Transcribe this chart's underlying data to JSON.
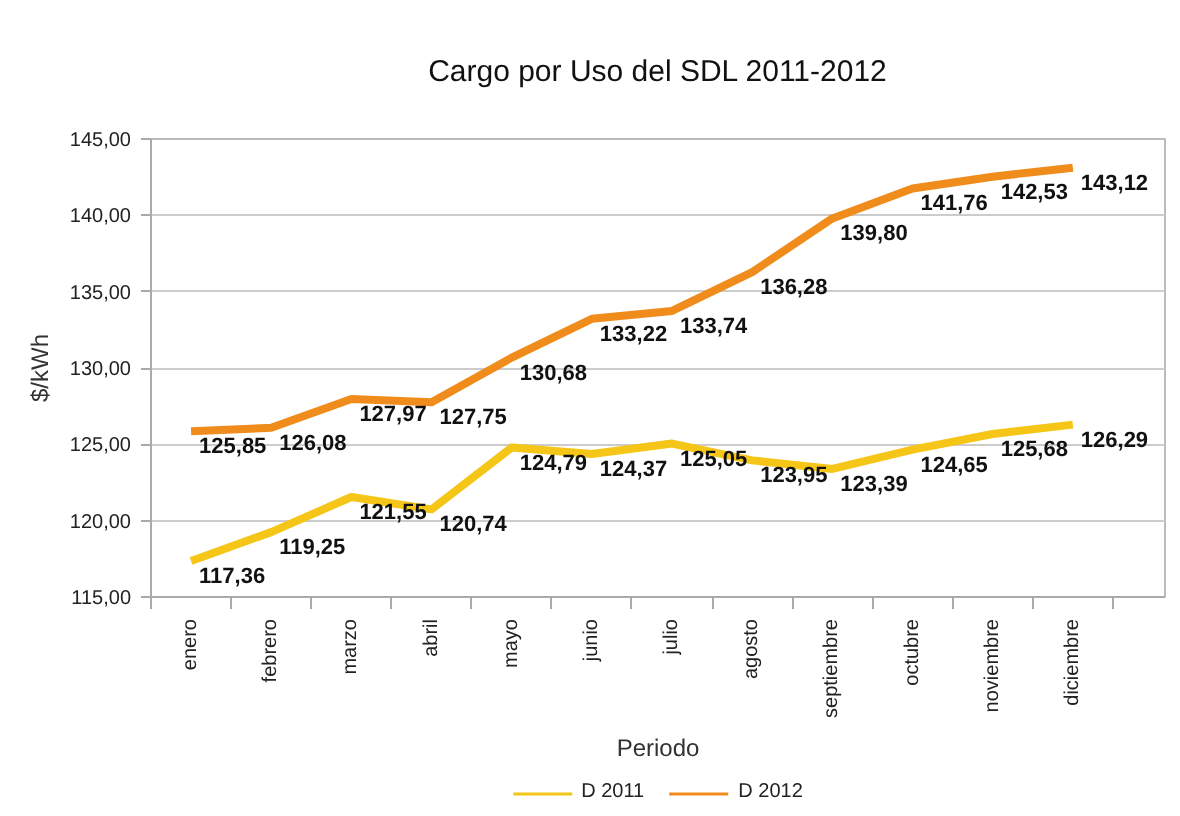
{
  "chart_data": {
    "type": "line",
    "title": "Cargo por Uso del SDL 2011-2012",
    "xlabel": "Periodo",
    "ylabel": "$/kWh",
    "categories": [
      "enero",
      "febrero",
      "marzo",
      "abril",
      "mayo",
      "junio",
      "julio",
      "agosto",
      "septiembre",
      "octubre",
      "noviembre",
      "diciembre"
    ],
    "series": [
      {
        "name": "D 2011",
        "color": "#f5c518",
        "values": [
          117.36,
          119.25,
          121.55,
          120.74,
          124.79,
          124.37,
          125.05,
          123.95,
          123.39,
          124.65,
          125.68,
          126.29
        ],
        "value_labels": [
          "117,36",
          "119,25",
          "121,55",
          "120,74",
          "124,79",
          "124,37",
          "125,05",
          "123,95",
          "123,39",
          "124,65",
          "125,68",
          "126,29"
        ]
      },
      {
        "name": "D 2012",
        "color": "#f08c1c",
        "values": [
          125.85,
          126.08,
          127.97,
          127.75,
          130.68,
          133.22,
          133.74,
          136.28,
          139.8,
          141.76,
          142.53,
          143.12
        ],
        "value_labels": [
          "125,85",
          "126,08",
          "127,97",
          "127,75",
          "130,68",
          "133,22",
          "133,74",
          "136,28",
          "139,80",
          "141,76",
          "142,53",
          "143,12"
        ]
      }
    ],
    "ylim": [
      115,
      145
    ],
    "yticks": [
      {
        "value": 115,
        "label": "115,00"
      },
      {
        "value": 120,
        "label": "120,00"
      },
      {
        "value": 125,
        "label": "125,00"
      },
      {
        "value": 130,
        "label": "130,00"
      },
      {
        "value": 135,
        "label": "135,00"
      },
      {
        "value": 140,
        "label": "140,00"
      },
      {
        "value": 145,
        "label": "145,00"
      }
    ],
    "grid": "y",
    "legend": "bottom"
  }
}
